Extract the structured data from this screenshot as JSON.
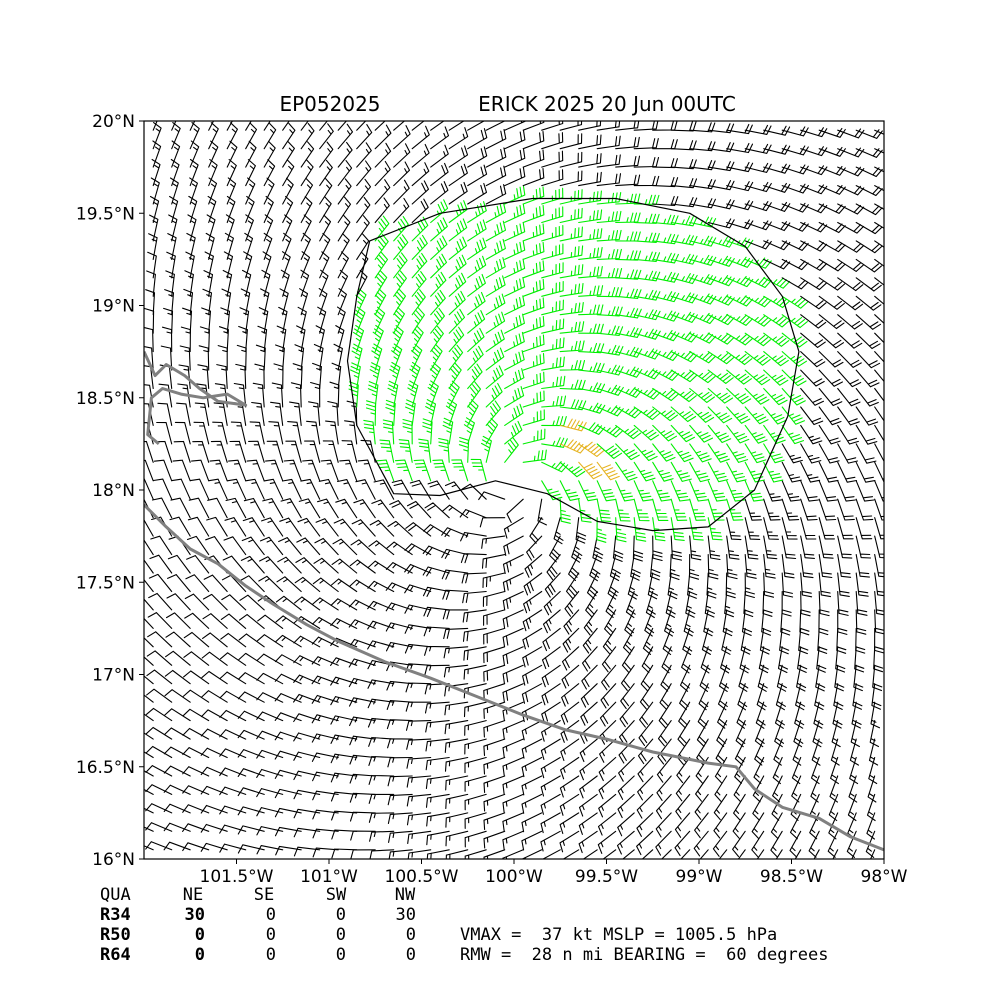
{
  "colors": {
    "barb_default": "#000000",
    "barb_34kt": "#00ee00",
    "barb_50kt": "#e6b422",
    "coastline": "#808080",
    "contour": "#000000"
  },
  "chart_data": {
    "type": "wind_barb_map",
    "title_left": "EP052025",
    "title_right": "ERICK 2025 20 Jun 00UTC",
    "xlim": [
      -102.0,
      -98.0
    ],
    "ylim": [
      16.0,
      20.0
    ],
    "x_ticks": [
      {
        "value": -101.5,
        "label": "101.5°W"
      },
      {
        "value": -101.0,
        "label": "101°W"
      },
      {
        "value": -100.5,
        "label": "100.5°W"
      },
      {
        "value": -100.0,
        "label": "100°W"
      },
      {
        "value": -99.5,
        "label": "99.5°W"
      },
      {
        "value": -99.0,
        "label": "99°W"
      },
      {
        "value": -98.5,
        "label": "98.5°W"
      },
      {
        "value": -98.0,
        "label": "98°W"
      }
    ],
    "y_ticks": [
      {
        "value": 20.0,
        "label": "20°N"
      },
      {
        "value": 19.5,
        "label": "19.5°N"
      },
      {
        "value": 19.0,
        "label": "19°N"
      },
      {
        "value": 18.5,
        "label": "18.5°N"
      },
      {
        "value": 18.0,
        "label": "18°N"
      },
      {
        "value": 17.5,
        "label": "17.5°N"
      },
      {
        "value": 17.0,
        "label": "17°N"
      },
      {
        "value": 16.5,
        "label": "16.5°N"
      },
      {
        "value": 16.0,
        "label": "16°N"
      }
    ],
    "storm_center": {
      "lon": -99.98,
      "lat": 18.03
    },
    "barb_grid_spacing_deg": 0.1,
    "vmax_kt": 37,
    "rmw_nmi": 28,
    "mslp_hpa": 1005.5,
    "bearing_deg": 60,
    "wind_34kt_contour": [
      [
        -100.78,
        19.35
      ],
      [
        -100.4,
        19.5
      ],
      [
        -99.9,
        19.58
      ],
      [
        -99.45,
        19.58
      ],
      [
        -99.05,
        19.5
      ],
      [
        -98.75,
        19.32
      ],
      [
        -98.55,
        19.05
      ],
      [
        -98.46,
        18.75
      ],
      [
        -98.52,
        18.4
      ],
      [
        -98.7,
        18.0
      ],
      [
        -98.95,
        17.8
      ],
      [
        -99.25,
        17.78
      ],
      [
        -99.55,
        17.83
      ],
      [
        -99.82,
        17.98
      ],
      [
        -100.1,
        18.05
      ],
      [
        -100.4,
        17.97
      ],
      [
        -100.65,
        17.98
      ],
      [
        -100.85,
        18.35
      ],
      [
        -100.9,
        18.7
      ],
      [
        -100.85,
        19.05
      ],
      [
        -100.78,
        19.35
      ]
    ],
    "coastline": [
      [
        -102.0,
        18.75
      ],
      [
        -101.94,
        18.62
      ],
      [
        -101.88,
        18.68
      ],
      [
        -101.78,
        18.62
      ],
      [
        -101.7,
        18.55
      ],
      [
        -101.6,
        18.48
      ],
      [
        -101.45,
        18.46
      ],
      [
        -101.55,
        18.52
      ],
      [
        -101.68,
        18.5
      ],
      [
        -101.8,
        18.52
      ],
      [
        -101.9,
        18.55
      ],
      [
        -101.96,
        18.5
      ],
      [
        -101.98,
        18.3
      ],
      [
        -101.92,
        18.25
      ],
      null,
      [
        -102.0,
        17.92
      ],
      [
        -101.88,
        17.8
      ],
      [
        -101.75,
        17.68
      ],
      [
        -101.6,
        17.6
      ],
      [
        -101.45,
        17.48
      ],
      [
        -101.3,
        17.38
      ],
      [
        -101.12,
        17.27
      ],
      [
        -100.95,
        17.18
      ],
      [
        -100.7,
        17.07
      ],
      [
        -100.45,
        16.98
      ],
      [
        -100.2,
        16.88
      ],
      [
        -99.95,
        16.78
      ],
      [
        -99.72,
        16.7
      ],
      [
        -99.5,
        16.65
      ],
      [
        -99.25,
        16.58
      ],
      [
        -99.1,
        16.55
      ],
      [
        -98.95,
        16.52
      ],
      [
        -98.8,
        16.5
      ],
      [
        -98.7,
        16.38
      ],
      [
        -98.55,
        16.28
      ],
      [
        -98.35,
        16.22
      ],
      [
        -98.18,
        16.12
      ],
      [
        -98.0,
        16.05
      ]
    ]
  },
  "summary_table": {
    "header": [
      "QUA",
      "NE",
      "SE",
      "SW",
      "NW"
    ],
    "rows": [
      {
        "label": "R34",
        "values": [
          "30",
          "0",
          "0",
          "30"
        ]
      },
      {
        "label": "R50",
        "values": [
          "0",
          "0",
          "0",
          "0"
        ]
      },
      {
        "label": "R64",
        "values": [
          "0",
          "0",
          "0",
          "0"
        ]
      }
    ],
    "line1": "VMAX =  37 kt MSLP = 1005.5 hPa",
    "line2": "RMW =  28 n mi BEARING =  60 degrees"
  }
}
